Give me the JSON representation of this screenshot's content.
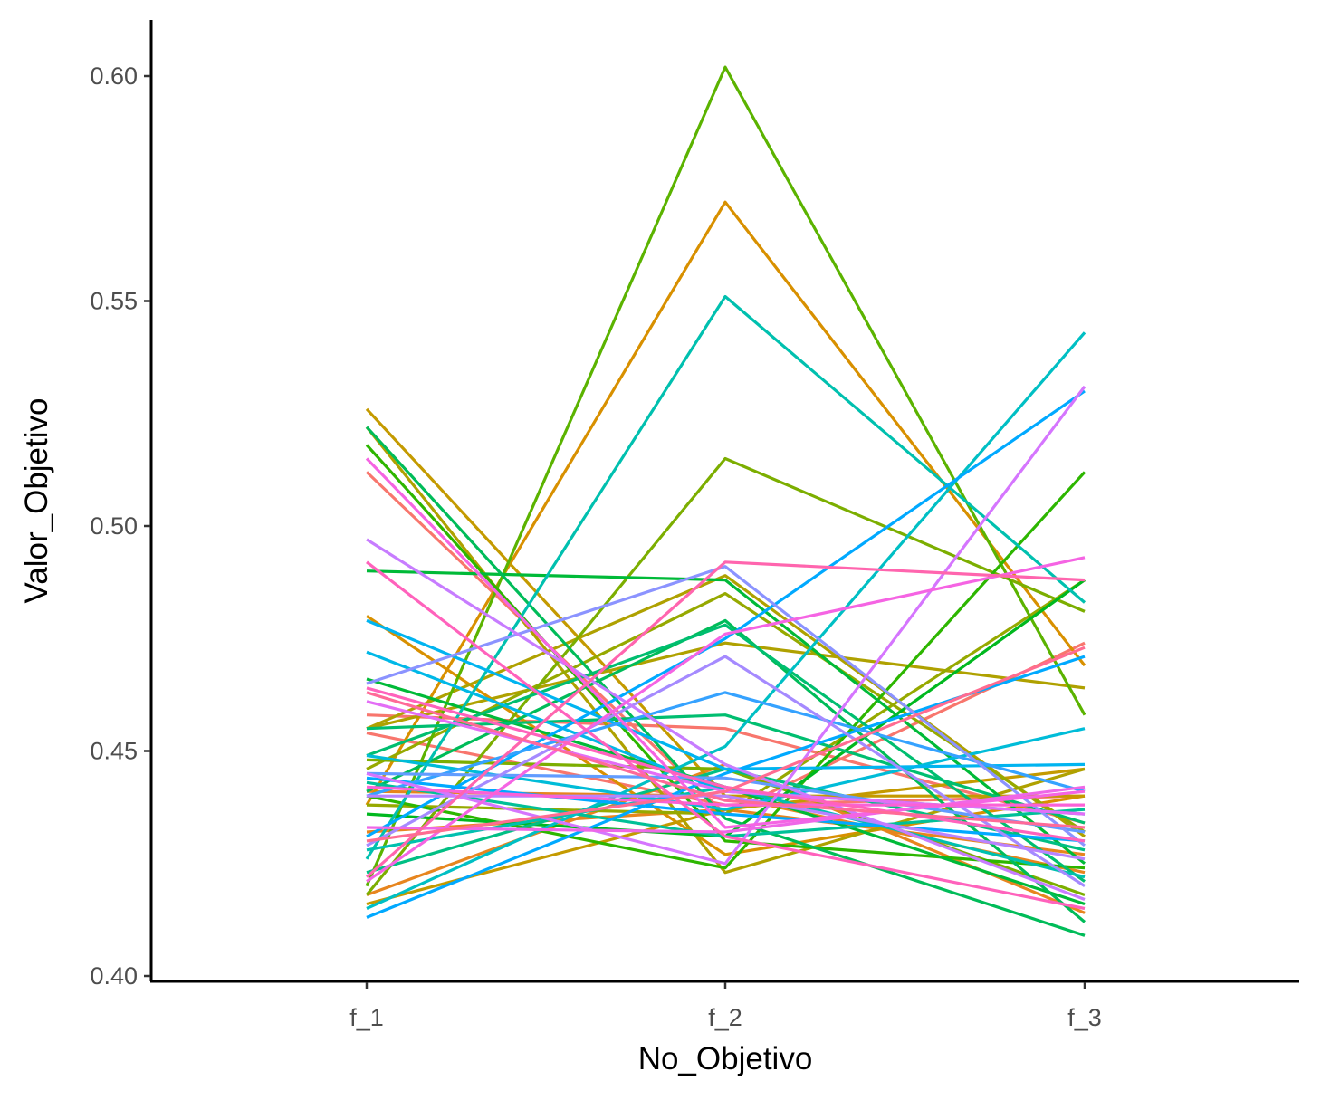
{
  "chart_data": {
    "type": "line",
    "title": "",
    "xlabel": "No_Objetivo",
    "ylabel": "Valor_Objetivo",
    "categories": [
      "f_1",
      "f_2",
      "f_3"
    ],
    "ylim": [
      0.4,
      0.61
    ],
    "yticks": [
      0.4,
      0.45,
      0.5,
      0.55,
      0.6
    ],
    "ytick_labels": [
      "0.40",
      "0.45",
      "0.50",
      "0.55",
      "0.60"
    ],
    "grid": false,
    "legend": "none",
    "series": [
      {
        "color": "#F8766D",
        "values": [
          0.512,
          0.436,
          0.474
        ]
      },
      {
        "color": "#F8766D",
        "values": [
          0.458,
          0.455,
          0.434
        ]
      },
      {
        "color": "#F8766D",
        "values": [
          0.454,
          0.438,
          0.44
        ]
      },
      {
        "color": "#E7851E",
        "values": [
          0.441,
          0.44,
          0.423
        ]
      },
      {
        "color": "#E7851E",
        "values": [
          0.418,
          0.447,
          0.414
        ]
      },
      {
        "color": "#E7851E",
        "values": [
          0.432,
          0.437,
          0.427
        ]
      },
      {
        "color": "#D89000",
        "values": [
          0.438,
          0.572,
          0.469
        ]
      },
      {
        "color": "#D89000",
        "values": [
          0.48,
          0.427,
          0.44
        ]
      },
      {
        "color": "#C49A00",
        "values": [
          0.526,
          0.44,
          0.44
        ]
      },
      {
        "color": "#C49A00",
        "values": [
          0.416,
          0.437,
          0.446
        ]
      },
      {
        "color": "#AFA100",
        "values": [
          0.455,
          0.489,
          0.431
        ]
      },
      {
        "color": "#AFA100",
        "values": [
          0.455,
          0.474,
          0.464
        ]
      },
      {
        "color": "#AFA100",
        "values": [
          0.522,
          0.423,
          0.446
        ]
      },
      {
        "color": "#96A900",
        "values": [
          0.446,
          0.485,
          0.432
        ]
      },
      {
        "color": "#96A900",
        "values": [
          0.438,
          0.436,
          0.488
        ]
      },
      {
        "color": "#7CAE00",
        "values": [
          0.418,
          0.515,
          0.481
        ]
      },
      {
        "color": "#7CAE00",
        "values": [
          0.448,
          0.446,
          0.418
        ]
      },
      {
        "color": "#5BB300",
        "values": [
          0.42,
          0.602,
          0.458
        ]
      },
      {
        "color": "#2DB600",
        "values": [
          0.44,
          0.424,
          0.512
        ]
      },
      {
        "color": "#2DB600",
        "values": [
          0.518,
          0.43,
          0.424
        ]
      },
      {
        "color": "#00B81F",
        "values": [
          0.436,
          0.431,
          0.488
        ]
      },
      {
        "color": "#00BA38",
        "values": [
          0.49,
          0.488,
          0.425
        ]
      },
      {
        "color": "#00BA38",
        "values": [
          0.466,
          0.442,
          0.416
        ]
      },
      {
        "color": "#00BC59",
        "values": [
          0.522,
          0.435,
          0.409
        ]
      },
      {
        "color": "#00BC59",
        "values": [
          0.441,
          0.479,
          0.412
        ]
      },
      {
        "color": "#00BE70",
        "values": [
          0.449,
          0.478,
          0.421
        ]
      },
      {
        "color": "#00BE70",
        "values": [
          0.455,
          0.458,
          0.434
        ]
      },
      {
        "color": "#00BF84",
        "values": [
          0.423,
          0.446,
          0.428
        ]
      },
      {
        "color": "#00C097",
        "values": [
          0.443,
          0.431,
          0.437
        ]
      },
      {
        "color": "#00C0AF",
        "values": [
          0.426,
          0.551,
          0.483
        ]
      },
      {
        "color": "#00C0AF",
        "values": [
          0.428,
          0.442,
          0.422
        ]
      },
      {
        "color": "#00BFC4",
        "values": [
          0.415,
          0.451,
          0.543
        ]
      },
      {
        "color": "#00BCD8",
        "values": [
          0.449,
          0.437,
          0.455
        ]
      },
      {
        "color": "#00B8E7",
        "values": [
          0.472,
          0.441,
          0.436
        ]
      },
      {
        "color": "#00B4F0",
        "values": [
          0.479,
          0.446,
          0.447
        ]
      },
      {
        "color": "#00A9FF",
        "values": [
          0.413,
          0.445,
          0.471
        ]
      },
      {
        "color": "#00A9FF",
        "values": [
          0.431,
          0.475,
          0.53
        ]
      },
      {
        "color": "#00A9FF",
        "values": [
          0.444,
          0.436,
          0.43
        ]
      },
      {
        "color": "#35A2FF",
        "values": [
          0.44,
          0.463,
          0.441
        ]
      },
      {
        "color": "#619CFF",
        "values": [
          0.445,
          0.444,
          0.432
        ]
      },
      {
        "color": "#8B93FF",
        "values": [
          0.465,
          0.491,
          0.429
        ]
      },
      {
        "color": "#A58AFF",
        "values": [
          0.429,
          0.471,
          0.42
        ]
      },
      {
        "color": "#B983FF",
        "values": [
          0.44,
          0.44,
          0.426
        ]
      },
      {
        "color": "#C77CFF",
        "values": [
          0.497,
          0.447,
          0.417
        ]
      },
      {
        "color": "#D575FE",
        "values": [
          0.445,
          0.425,
          0.531
        ]
      },
      {
        "color": "#E36EF6",
        "values": [
          0.461,
          0.441,
          0.436
        ]
      },
      {
        "color": "#EE67E7",
        "values": [
          0.433,
          0.432,
          0.442
        ]
      },
      {
        "color": "#F564E3",
        "values": [
          0.421,
          0.476,
          0.493
        ]
      },
      {
        "color": "#F564E3",
        "values": [
          0.515,
          0.433,
          0.441
        ]
      },
      {
        "color": "#FB61D7",
        "values": [
          0.442,
          0.438,
          0.438
        ]
      },
      {
        "color": "#FF62BC",
        "values": [
          0.464,
          0.442,
          0.43
        ]
      },
      {
        "color": "#FF62BC",
        "values": [
          0.492,
          0.431,
          0.415
        ]
      },
      {
        "color": "#FF65AE",
        "values": [
          0.422,
          0.492,
          0.488
        ]
      },
      {
        "color": "#FF6C91",
        "values": [
          0.43,
          0.441,
          0.473
        ]
      },
      {
        "color": "#FF6A98",
        "values": [
          0.463,
          0.439,
          0.433
        ]
      }
    ]
  }
}
